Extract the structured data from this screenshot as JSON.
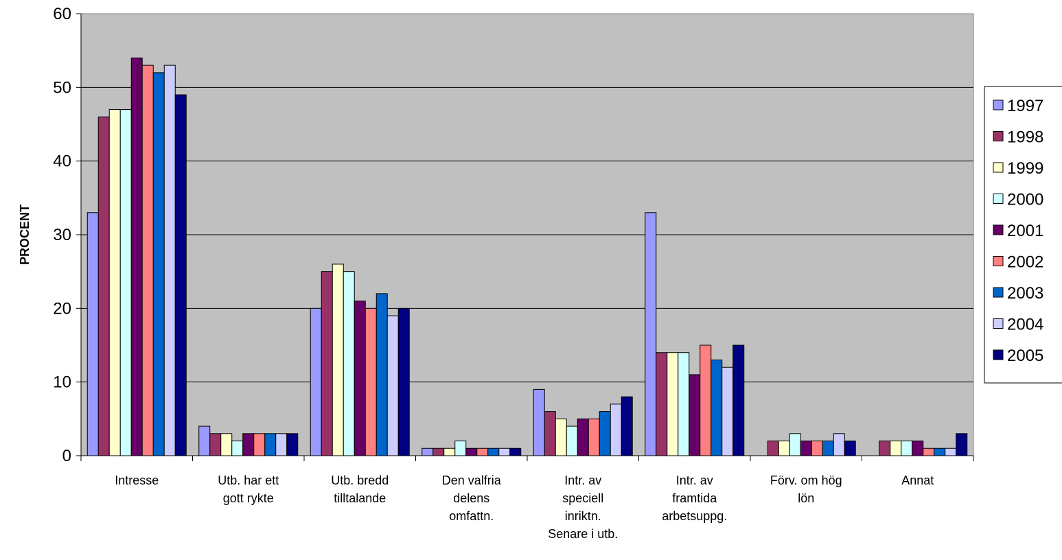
{
  "chart_data": {
    "type": "bar",
    "ylabel": "PROCENT",
    "xlabel": "",
    "title": "",
    "ylim": [
      0,
      60
    ],
    "yticks": [
      0,
      10,
      20,
      30,
      40,
      50,
      60
    ],
    "grid": true,
    "legend_position": "right",
    "categories": [
      [
        "Intresse"
      ],
      [
        "Utb. har ett",
        "gott rykte"
      ],
      [
        "Utb. bredd",
        "tilltalande"
      ],
      [
        "Den valfria",
        "delens",
        "omfattn."
      ],
      [
        "Intr. av",
        "speciell",
        "inriktn.",
        "Senare i utb."
      ],
      [
        "Intr. av",
        "framtida",
        "arbetsuppg."
      ],
      [
        "Förv. om hög",
        "lön"
      ],
      [
        "Annat"
      ]
    ],
    "series": [
      {
        "name": "1997",
        "color": "#9999FF",
        "values": [
          33,
          4,
          20,
          1,
          9,
          33,
          0,
          0
        ]
      },
      {
        "name": "1998",
        "color": "#993366",
        "values": [
          46,
          3,
          25,
          1,
          6,
          14,
          2,
          2
        ]
      },
      {
        "name": "1999",
        "color": "#FFFFCC",
        "values": [
          47,
          3,
          26,
          1,
          5,
          14,
          2,
          2
        ]
      },
      {
        "name": "2000",
        "color": "#CCFFFF",
        "values": [
          47,
          2,
          25,
          2,
          4,
          14,
          3,
          2
        ]
      },
      {
        "name": "2001",
        "color": "#660066",
        "values": [
          54,
          3,
          21,
          1,
          5,
          11,
          2,
          2
        ]
      },
      {
        "name": "2002",
        "color": "#FF8080",
        "values": [
          53,
          3,
          20,
          1,
          5,
          15,
          2,
          1
        ]
      },
      {
        "name": "2003",
        "color": "#0066CC",
        "values": [
          52,
          3,
          22,
          1,
          6,
          13,
          2,
          1
        ]
      },
      {
        "name": "2004",
        "color": "#CCCCFF",
        "values": [
          53,
          3,
          19,
          1,
          7,
          12,
          3,
          1
        ]
      },
      {
        "name": "2005",
        "color": "#000080",
        "values": [
          49,
          3,
          20,
          1,
          8,
          15,
          2,
          3
        ]
      }
    ],
    "plot_background": "#C0C0C0"
  }
}
